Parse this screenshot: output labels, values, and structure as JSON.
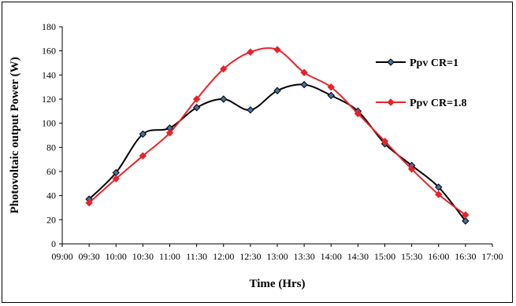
{
  "chart_data": {
    "type": "line",
    "xlabel": "Time (Hrs)",
    "ylabel": "Photovoltaic output Power  (W)",
    "ylim": [
      0,
      180
    ],
    "yticks": [
      0,
      20,
      40,
      60,
      80,
      100,
      120,
      140,
      160,
      180
    ],
    "xticks": [
      "09:00",
      "09:30",
      "10:00",
      "10:30",
      "11:00",
      "11:30",
      "12:00",
      "12:30",
      "13:00",
      "13:30",
      "14:00",
      "14:30",
      "15:00",
      "15:30",
      "16:00",
      "16:30",
      "17:00"
    ],
    "grid": false,
    "legend_position": "right",
    "series": [
      {
        "name": "Ppv CR=1",
        "color": "#000000",
        "marker_fill": "#4a6fa5",
        "x": [
          "09:30",
          "10:00",
          "10:30",
          "11:00",
          "11:30",
          "12:00",
          "12:30",
          "13:00",
          "13:30",
          "14:00",
          "14:30",
          "15:00",
          "15:30",
          "16:00",
          "16:30"
        ],
        "values": [
          37,
          59,
          91,
          96,
          113,
          120,
          111,
          127,
          132,
          123,
          110,
          83,
          65,
          47,
          19
        ]
      },
      {
        "name": "Ppv CR=1.8",
        "color": "#e8232a",
        "marker_fill": "#e8232a",
        "x": [
          "09:30",
          "10:00",
          "10:30",
          "11:00",
          "11:30",
          "12:00",
          "12:30",
          "13:00",
          "13:30",
          "14:00",
          "14:30",
          "15:00",
          "15:30",
          "16:00",
          "16:30"
        ],
        "values": [
          34,
          54,
          73,
          92,
          120,
          145,
          159,
          161,
          142,
          130,
          108,
          85,
          62,
          41,
          24
        ]
      }
    ]
  }
}
